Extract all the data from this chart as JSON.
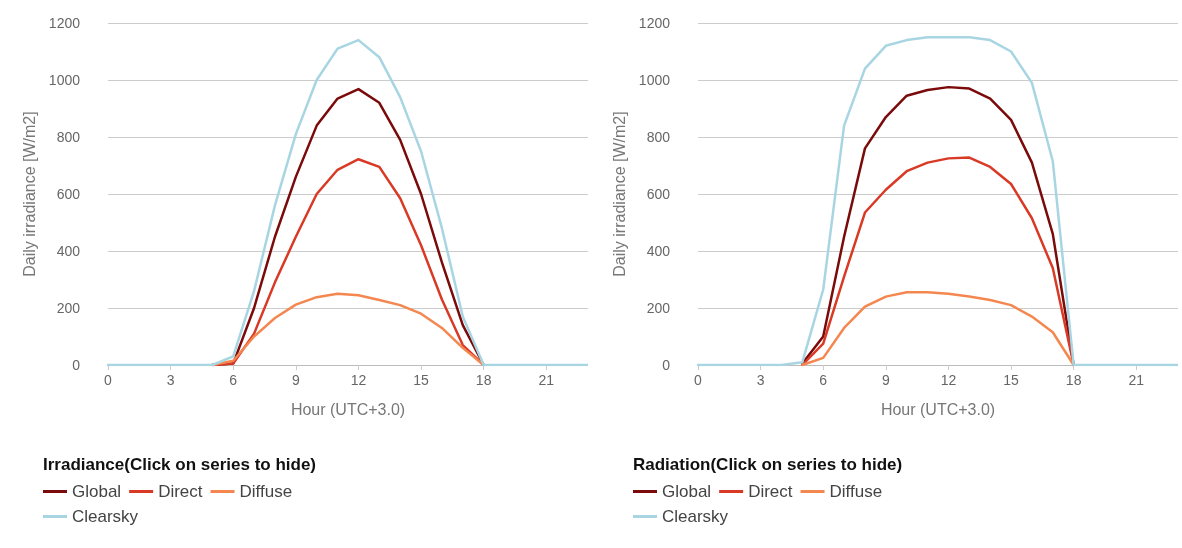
{
  "chart_data": [
    {
      "type": "line",
      "xlabel": "Hour (UTC+3.0)",
      "ylabel": "Daily irradiance [W/m2]",
      "legend_title": "Irradiance(Click on series to hide)",
      "legend": "bottom",
      "grid": "y",
      "line_style": "solid",
      "x": [
        0,
        1,
        2,
        3,
        4,
        5,
        6,
        7,
        8,
        9,
        10,
        11,
        12,
        13,
        14,
        15,
        16,
        17,
        18,
        19,
        20,
        21,
        22,
        23
      ],
      "xlim": [
        0,
        23
      ],
      "xticks": [
        0,
        3,
        6,
        9,
        12,
        15,
        18,
        21
      ],
      "ylim": [
        0,
        1200
      ],
      "yticks": [
        0,
        200,
        400,
        600,
        800,
        1000,
        1200
      ],
      "series": [
        {
          "name": "Global",
          "color": "#7b0a0a",
          "values": [
            null,
            null,
            null,
            null,
            null,
            0,
            5,
            200,
            450,
            660,
            840,
            935,
            968,
            920,
            790,
            600,
            360,
            140,
            0,
            null,
            null,
            null,
            null,
            null
          ]
        },
        {
          "name": "Direct",
          "color": "#d93a26",
          "values": [
            null,
            null,
            null,
            null,
            null,
            0,
            5,
            110,
            290,
            450,
            600,
            685,
            722,
            695,
            585,
            420,
            230,
            70,
            0,
            null,
            null,
            null,
            null,
            null
          ]
        },
        {
          "name": "Diffuse",
          "color": "#f4874f",
          "values": [
            null,
            null,
            null,
            null,
            null,
            0,
            15,
            100,
            165,
            212,
            238,
            250,
            245,
            228,
            210,
            180,
            130,
            60,
            0,
            null,
            null,
            null,
            null,
            null
          ]
        },
        {
          "name": "Clearsky",
          "color": "#a8d5e2",
          "values": [
            0,
            0,
            0,
            0,
            0,
            0,
            30,
            260,
            560,
            810,
            1000,
            1110,
            1140,
            1080,
            940,
            750,
            480,
            170,
            0,
            0,
            0,
            0,
            0,
            0
          ]
        }
      ]
    },
    {
      "type": "line",
      "xlabel": "Hour (UTC+3.0)",
      "ylabel": "Daily irradiance [W/m2]",
      "legend_title": "Radiation(Click on series to hide)",
      "legend": "bottom",
      "grid": "y",
      "line_style": "solid",
      "x": [
        0,
        1,
        2,
        3,
        4,
        5,
        6,
        7,
        8,
        9,
        10,
        11,
        12,
        13,
        14,
        15,
        16,
        17,
        18,
        19,
        20,
        21,
        22,
        23
      ],
      "xlim": [
        0,
        23
      ],
      "xticks": [
        0,
        3,
        6,
        9,
        12,
        15,
        18,
        21
      ],
      "ylim": [
        0,
        1200
      ],
      "yticks": [
        0,
        200,
        400,
        600,
        800,
        1000,
        1200
      ],
      "series": [
        {
          "name": "Global",
          "color": "#7b0a0a",
          "values": [
            null,
            null,
            null,
            null,
            null,
            5,
            100,
            450,
            760,
            870,
            945,
            965,
            975,
            970,
            935,
            860,
            710,
            460,
            0,
            null,
            null,
            null,
            null,
            null
          ]
        },
        {
          "name": "Direct",
          "color": "#d93a26",
          "values": [
            null,
            null,
            null,
            null,
            null,
            0,
            75,
            310,
            535,
            615,
            680,
            710,
            725,
            728,
            695,
            635,
            515,
            340,
            0,
            null,
            null,
            null,
            null,
            null
          ]
        },
        {
          "name": "Diffuse",
          "color": "#f4874f",
          "values": [
            null,
            null,
            null,
            null,
            null,
            0,
            25,
            130,
            205,
            240,
            255,
            255,
            250,
            240,
            228,
            210,
            170,
            115,
            0,
            null,
            null,
            null,
            null,
            null
          ]
        },
        {
          "name": "Clearsky",
          "color": "#a8d5e2",
          "values": [
            0,
            0,
            0,
            0,
            0,
            10,
            265,
            840,
            1040,
            1120,
            1140,
            1150,
            1150,
            1150,
            1140,
            1100,
            990,
            715,
            0,
            0,
            0,
            0,
            0,
            0
          ]
        }
      ]
    }
  ]
}
